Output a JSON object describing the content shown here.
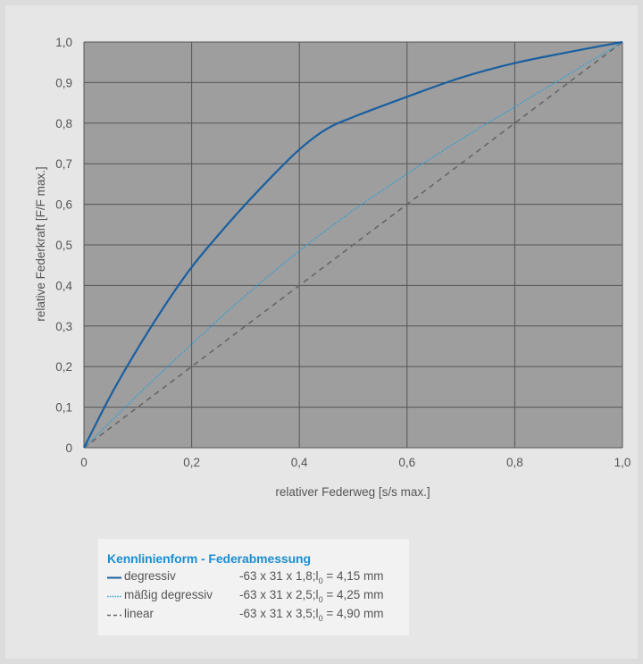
{
  "chart_data": {
    "type": "line",
    "xlabel": "relativer Federweg [s/s max.]",
    "ylabel": "relative Federkraft [F/F max.]",
    "xlim": [
      0,
      1
    ],
    "ylim": [
      0,
      1
    ],
    "x_ticks": [
      "0",
      "0,2",
      "0,4",
      "0,6",
      "0,8",
      "1,0"
    ],
    "y_ticks": [
      "0",
      "0,1",
      "0,2",
      "0,3",
      "0,4",
      "0,5",
      "0,6",
      "0,7",
      "0,8",
      "0,9",
      "1,0"
    ],
    "grid": true,
    "series": [
      {
        "name": "degressiv",
        "color": "#1a5fa0",
        "style": "solid",
        "x": [
          0,
          0.05,
          0.1,
          0.15,
          0.2,
          0.25,
          0.3,
          0.35,
          0.4,
          0.45,
          0.5,
          0.6,
          0.7,
          0.8,
          0.9,
          1.0
        ],
        "y": [
          0,
          0.13,
          0.245,
          0.35,
          0.445,
          0.525,
          0.6,
          0.67,
          0.735,
          0.785,
          0.815,
          0.865,
          0.912,
          0.948,
          0.975,
          1.0
        ]
      },
      {
        "name": "mäßig degressiv",
        "color": "#2aa0d8",
        "style": "dotted",
        "x": [
          0,
          0.1,
          0.2,
          0.3,
          0.4,
          0.5,
          0.6,
          0.7,
          0.8,
          0.9,
          1.0
        ],
        "y": [
          0,
          0.13,
          0.255,
          0.375,
          0.485,
          0.585,
          0.675,
          0.76,
          0.84,
          0.92,
          1.0
        ]
      },
      {
        "name": "linear",
        "color": "#666666",
        "style": "dashed",
        "x": [
          0,
          1.0
        ],
        "y": [
          0,
          1.0
        ]
      }
    ]
  },
  "legend": {
    "title": "Kennlinienform - Federabmessung",
    "rows": [
      {
        "name": "degressiv",
        "dims_pre": "-63 x 31 x 1,8;l",
        "dims_sub": "0",
        "dims_post": " = 4,15 mm",
        "color": "#1a5fa0",
        "style": "solid"
      },
      {
        "name": "mäßig degressiv",
        "dims_pre": "-63 x 31 x 2,5;l",
        "dims_sub": "0",
        "dims_post": " = 4,25 mm",
        "color": "#2aa0d8",
        "style": "dotted"
      },
      {
        "name": "linear",
        "dims_pre": "-63 x 31 x 3,5;l",
        "dims_sub": "0",
        "dims_post": " = 4,90 mm",
        "color": "#666666",
        "style": "dashed"
      }
    ]
  }
}
